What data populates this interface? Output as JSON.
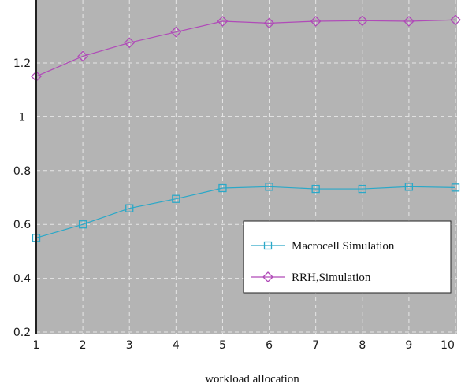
{
  "chart_data": {
    "type": "line",
    "title": "",
    "xlabel": "workload allocation",
    "ylabel": "",
    "x": [
      1,
      2,
      3,
      4,
      5,
      6,
      7,
      8,
      9,
      10
    ],
    "xlim": [
      1,
      10
    ],
    "ylim": [
      0.2,
      1.4
    ],
    "x_ticks": [
      "1",
      "2",
      "3",
      "4",
      "5",
      "6",
      "7",
      "8",
      "9",
      "10"
    ],
    "y_ticks": [
      "0.2",
      "0.4",
      "0.6",
      "0.8",
      "1",
      "1.2"
    ],
    "y_tick_values": [
      0.2,
      0.4,
      0.6,
      0.8,
      1.0,
      1.2
    ],
    "grid": true,
    "legend_position": "center-right",
    "background_color": "#b4b4b4",
    "grid_color": "#e6e6e6",
    "series": [
      {
        "name": "Macrocell Simulation",
        "marker": "square",
        "color": "#2aa8c8",
        "values": [
          0.55,
          0.6,
          0.66,
          0.695,
          0.735,
          0.74,
          0.732,
          0.732,
          0.74,
          0.737
        ]
      },
      {
        "name": "RRH,Simulation",
        "marker": "diamond",
        "color": "#b04ab8",
        "values": [
          1.15,
          1.225,
          1.275,
          1.315,
          1.355,
          1.348,
          1.355,
          1.357,
          1.355,
          1.36
        ]
      }
    ]
  }
}
